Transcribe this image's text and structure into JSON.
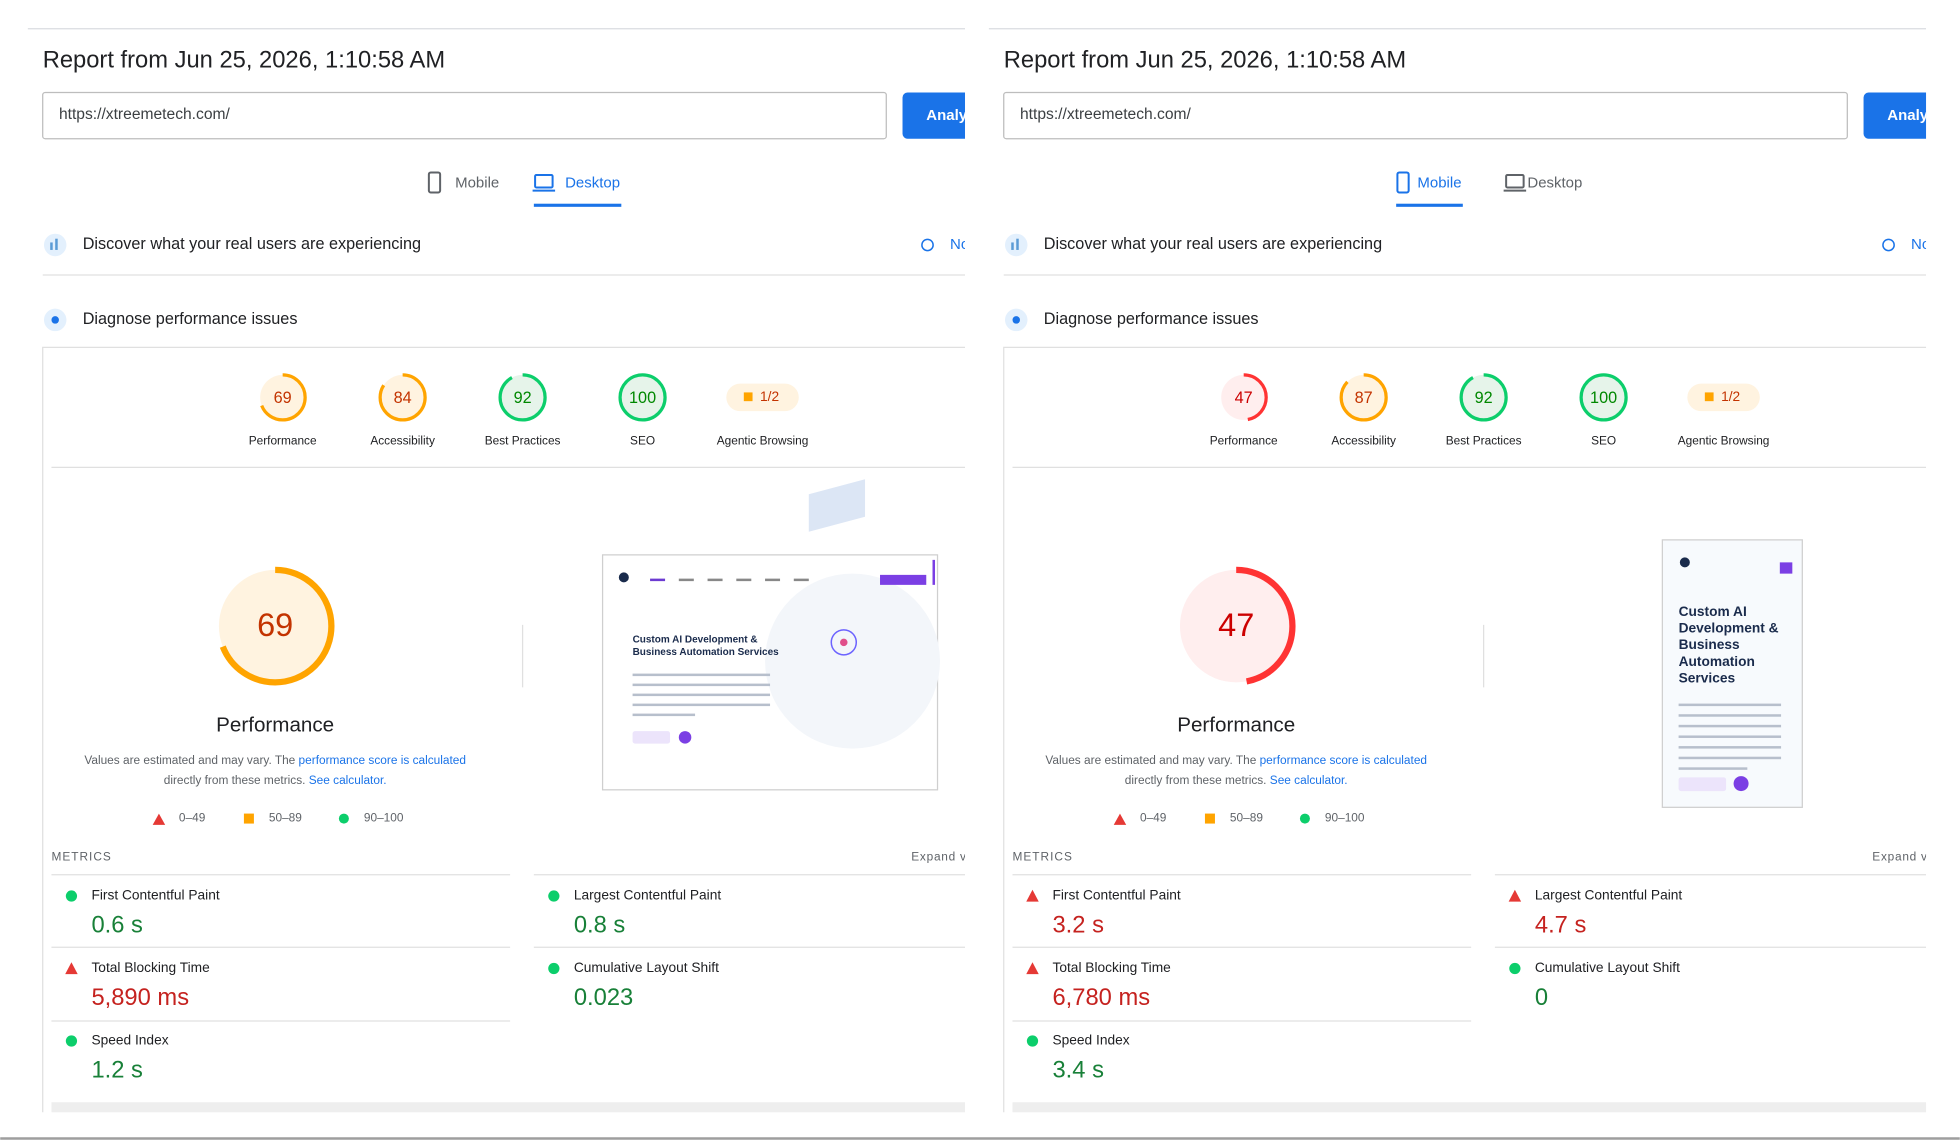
{
  "panels": [
    {
      "title": "Report from Jun 25, 2026, 1:10:58 AM",
      "url": "https://xtreemetech.com/",
      "button": "Analy",
      "tabs": [
        "Mobile",
        "Desktop"
      ],
      "active_tab": 1,
      "field_data": {
        "text": "Discover what your real users are experiencing",
        "link": "No"
      },
      "diagnose": "Diagnose performance issues",
      "scores": [
        {
          "value": 69,
          "label": "Performance",
          "color": "#ffa400"
        },
        {
          "value": 84,
          "label": "Accessibility",
          "color": "#ffa400"
        },
        {
          "value": 92,
          "label": "Best Practices",
          "color": "#0cce6b"
        },
        {
          "value": 100,
          "label": "SEO",
          "color": "#0cce6b"
        }
      ],
      "agentic": {
        "value": "1/2",
        "label": "Agentic Browsing"
      },
      "main_label": "Performance",
      "note": {
        "line1": "Values are estimated and may vary. The ",
        "link1": "performance score is calculated",
        "line2": "directly from these metrics. ",
        "link2": "See calculator."
      },
      "legend": [
        "0–49",
        "50–89",
        "90–100"
      ],
      "preview": {
        "device": "desktop",
        "heading": [
          "Custom AI Development &",
          "Business Automation Services"
        ]
      },
      "metrics_title": "METRICS",
      "expand": "Expand v",
      "metrics": [
        {
          "name": "First Contentful Paint",
          "value": "0.6 s",
          "icon": "circle",
          "color": "#0cce6b",
          "text_color": "#188038"
        },
        {
          "name": "Largest Contentful Paint",
          "value": "0.8 s",
          "icon": "circle",
          "color": "#0cce6b",
          "text_color": "#188038"
        },
        {
          "name": "Total Blocking Time",
          "value": "5,890 ms",
          "icon": "triangle",
          "color": "#e53935",
          "text_color": "#c5221f"
        },
        {
          "name": "Cumulative Layout Shift",
          "value": "0.023",
          "icon": "circle",
          "color": "#0cce6b",
          "text_color": "#188038"
        },
        {
          "name": "Speed Index",
          "value": "1.2 s",
          "icon": "circle",
          "color": "#0cce6b",
          "text_color": "#188038"
        }
      ]
    },
    {
      "title": "Report from Jun 25, 2026, 1:10:58 AM",
      "url": "https://xtreemetech.com/",
      "button": "Analyz",
      "tabs": [
        "Mobile",
        "Desktop"
      ],
      "active_tab": 0,
      "field_data": {
        "text": "Discover what your real users are experiencing",
        "link": "No"
      },
      "diagnose": "Diagnose performance issues",
      "scores": [
        {
          "value": 47,
          "label": "Performance",
          "color": "#ff3333"
        },
        {
          "value": 87,
          "label": "Accessibility",
          "color": "#ffa400"
        },
        {
          "value": 92,
          "label": "Best Practices",
          "color": "#0cce6b"
        },
        {
          "value": 100,
          "label": "SEO",
          "color": "#0cce6b"
        }
      ],
      "agentic": {
        "value": "1/2",
        "label": "Agentic Browsing"
      },
      "main_label": "Performance",
      "note": {
        "line1": "Values are estimated and may vary. The ",
        "link1": "performance score is calculated",
        "line2": "directly from these metrics. ",
        "link2": "See calculator."
      },
      "legend": [
        "0–49",
        "50–89",
        "90–100"
      ],
      "preview": {
        "device": "mobile",
        "heading": [
          "Custom AI",
          "Development &",
          "Business",
          "Automation",
          "Services"
        ]
      },
      "metrics_title": "METRICS",
      "expand": "Expand vi",
      "metrics": [
        {
          "name": "First Contentful Paint",
          "value": "3.2 s",
          "icon": "triangle",
          "color": "#e53935",
          "text_color": "#c5221f"
        },
        {
          "name": "Largest Contentful Paint",
          "value": "4.7 s",
          "icon": "triangle",
          "color": "#e53935",
          "text_color": "#c5221f"
        },
        {
          "name": "Total Blocking Time",
          "value": "6,780 ms",
          "icon": "triangle",
          "color": "#e53935",
          "text_color": "#c5221f"
        },
        {
          "name": "Cumulative Layout Shift",
          "value": "0",
          "icon": "circle",
          "color": "#0cce6b",
          "text_color": "#188038"
        },
        {
          "name": "Speed Index",
          "value": "3.4 s",
          "icon": "circle",
          "color": "#0cce6b",
          "text_color": "#188038"
        }
      ]
    }
  ]
}
